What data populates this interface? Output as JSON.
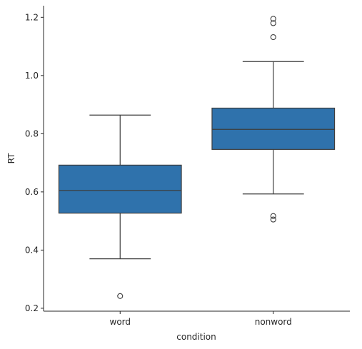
{
  "chart_data": {
    "type": "box",
    "xlabel": "condition",
    "ylabel": "RT",
    "ylim": [
      0.19,
      1.24
    ],
    "yticks": [
      0.2,
      0.4,
      0.6,
      0.8,
      1.0,
      1.2
    ],
    "ytick_labels": [
      "0.2",
      "0.4",
      "0.6",
      "0.8",
      "1.0",
      "1.2"
    ],
    "categories": [
      "word",
      "nonword"
    ],
    "box_color": "#2f72ac",
    "line_color": "#3d3d3d",
    "grid": false,
    "boxes": [
      {
        "category": "word",
        "whisker_low": 0.37,
        "q1": 0.527,
        "median": 0.605,
        "q3": 0.692,
        "whisker_high": 0.864,
        "outliers": [
          0.242
        ]
      },
      {
        "category": "nonword",
        "whisker_low": 0.593,
        "q1": 0.746,
        "median": 0.815,
        "q3": 0.888,
        "whisker_high": 1.048,
        "outliers": [
          0.505,
          0.517,
          1.132,
          1.18,
          1.195
        ]
      }
    ]
  }
}
